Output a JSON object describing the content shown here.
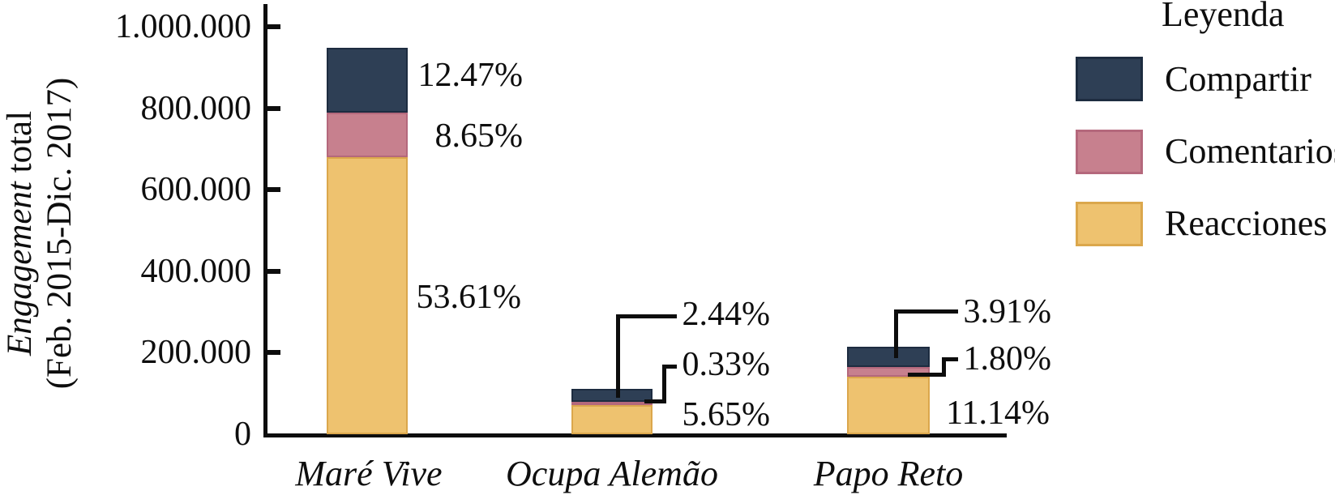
{
  "figure": {
    "background": "#ffffff",
    "axis_color": "#0d0d0d",
    "text_color": "#0e0e0e"
  },
  "chart_data": {
    "type": "bar",
    "stacked": true,
    "title": "",
    "xlabel": "",
    "ylabel": "Engagement total (Feb. 2015-Dic. 2017)",
    "ylabel_italic_part": "Engagement",
    "ylabel_regular_part": " total",
    "ylabel_line2": "(Feb. 2015-Dic. 2017)",
    "categories": [
      "Maré Vive",
      "Ocupa Alemão",
      "Papo Reto"
    ],
    "series": [
      {
        "name": "Reacciones",
        "color": "#eec26f",
        "border_color": "#dba74c",
        "percentages": [
          53.61,
          5.65,
          11.14
        ],
        "estimated_values": [
          680000,
          72000,
          141000
        ]
      },
      {
        "name": "Comentarios",
        "color": "#c7808e",
        "border_color": "#b4687c",
        "percentages": [
          8.65,
          0.33,
          1.8
        ],
        "estimated_values": [
          110000,
          4000,
          23000
        ]
      },
      {
        "name": "Compartir",
        "color": "#2e3f55",
        "border_color": "#1d2c40",
        "percentages": [
          12.47,
          2.44,
          3.91
        ],
        "estimated_values": [
          158000,
          31000,
          50000
        ]
      }
    ],
    "stack_order_bottom_to_top": [
      "Reacciones",
      "Comentarios",
      "Compartir"
    ],
    "y_axis": {
      "ylim": [
        0,
        1000000
      ],
      "grid": false,
      "ticks": [
        {
          "label": "1.000.000",
          "value": 1000000
        },
        {
          "label": "800.000",
          "value": 800000
        },
        {
          "label": "600.000",
          "value": 600000
        },
        {
          "label": "400.000",
          "value": 400000
        },
        {
          "label": "200.000",
          "value": 200000
        },
        {
          "label": "0",
          "value": 0
        }
      ]
    },
    "percent_labels": {
      "mare_vive": {
        "compartir": "12.47%",
        "comentarios": "8.65%",
        "reacciones": "53.61%"
      },
      "ocupa_alemao": {
        "compartir": "2.44%",
        "comentarios": "0.33%",
        "reacciones": "5.65%"
      },
      "papo_reto": {
        "compartir": "3.91%",
        "comentarios": "1.80%",
        "reacciones": "11.14%"
      }
    },
    "legend": {
      "title": "Leyenda",
      "position": "top-right",
      "entries_top_to_bottom": [
        "Compartir",
        "Comentarios",
        "Reacciones"
      ]
    }
  }
}
